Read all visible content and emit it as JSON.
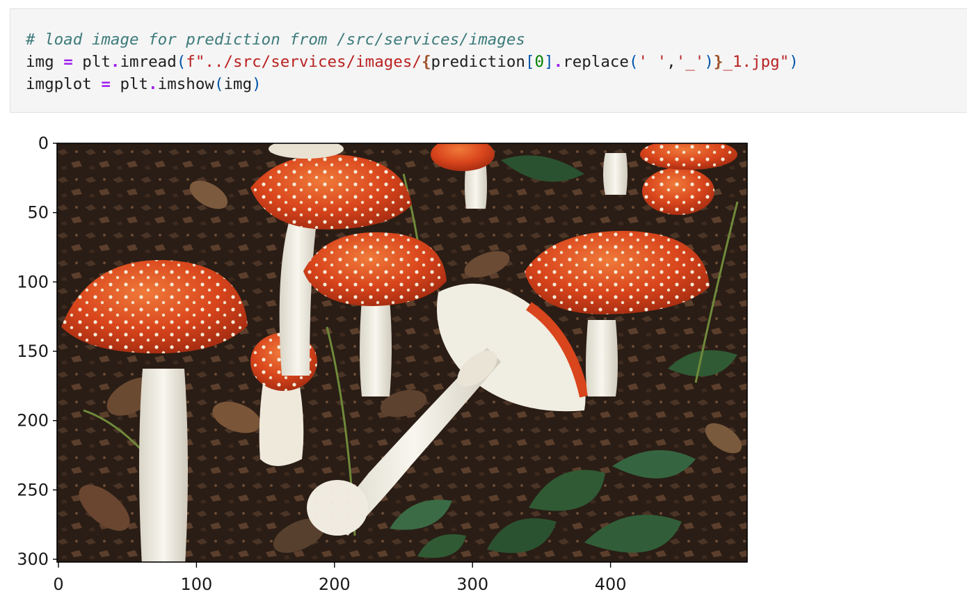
{
  "code_cell": {
    "line1": {
      "comment": "# load image for prediction from /src/services/images"
    },
    "line2": {
      "var": "img",
      "eq": "=",
      "obj": "plt",
      "dot1": ".",
      "func": "imread",
      "lparen": "(",
      "fstr_open": "f\"../src/services/images/",
      "brace_open": "{",
      "expr_a": "prediction",
      "lbracket": "[",
      "index": "0",
      "rbracket": "]",
      "dot2": ".",
      "method": "replace",
      "lparen2": "(",
      "arg1": "' '",
      "comma": ",",
      "arg2": "'_'",
      "rparen2": ")",
      "brace_close": "}",
      "fstr_close": "_1.jpg\"",
      "rparen": ")"
    },
    "line3": {
      "var": "imgplot",
      "eq": "=",
      "obj": "plt",
      "dot": ".",
      "func": "imshow",
      "lparen": "(",
      "arg": "img",
      "rparen": ")"
    }
  },
  "output": {
    "chart_data": {
      "type": "image",
      "x_ticks": [
        "0",
        "100",
        "200",
        "300",
        "400"
      ],
      "y_ticks": [
        "0",
        "50",
        "100",
        "150",
        "200",
        "250",
        "300"
      ],
      "x_tick_values": [
        0,
        100,
        200,
        300,
        400
      ],
      "y_tick_values": [
        0,
        50,
        100,
        150,
        200,
        250,
        300
      ],
      "xlim": [
        0,
        500
      ],
      "ylim": [
        0,
        302
      ]
    }
  },
  "colors": {
    "cell_bg": "#f5f5f5",
    "cap_red": "#d9451c",
    "ground": "#2a1d15",
    "leaf": "#2f5a34",
    "stem": "#f1efe6"
  }
}
